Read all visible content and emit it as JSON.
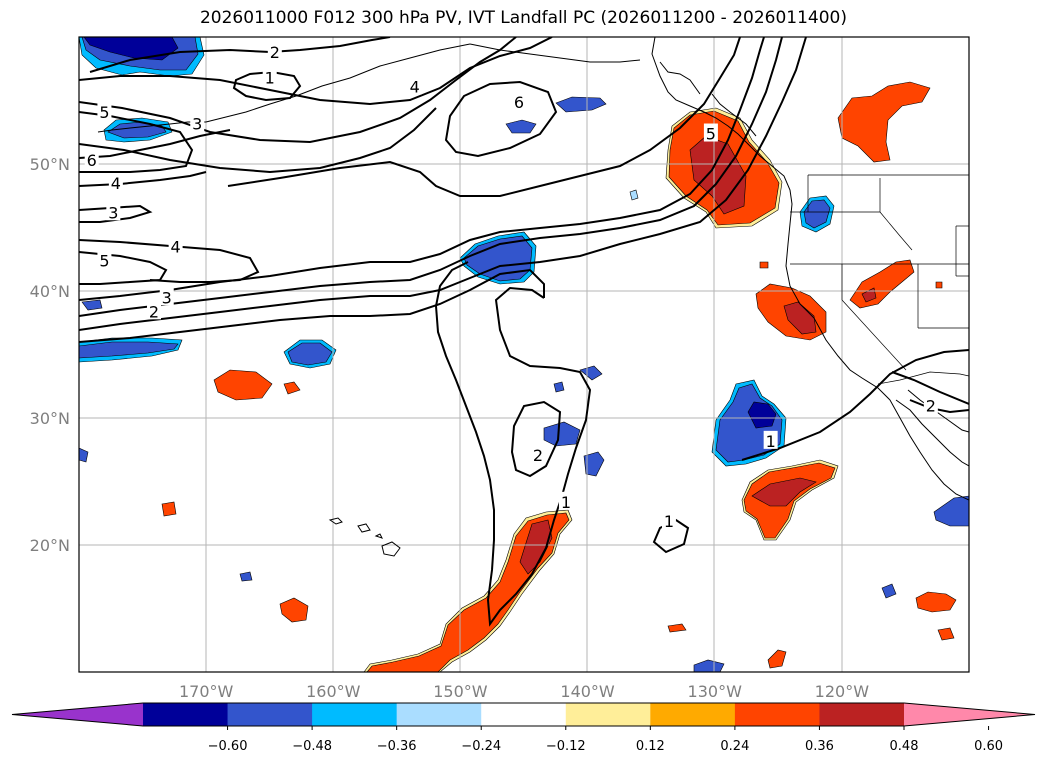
{
  "title": "2026011000 F012 300 hPa PV, IVT Landfall PC (2026011200 - 2026011400)",
  "map": {
    "lon_range": [
      -180,
      -110
    ],
    "lat_range": [
      10,
      60
    ],
    "lon_ticks": [
      {
        "value": -170,
        "label": "170°W"
      },
      {
        "value": -160,
        "label": "160°W"
      },
      {
        "value": -150,
        "label": "150°W"
      },
      {
        "value": -140,
        "label": "140°W"
      },
      {
        "value": -130,
        "label": "130°W"
      },
      {
        "value": -120,
        "label": "120°W"
      }
    ],
    "lat_ticks": [
      {
        "value": 20,
        "label": "20°N"
      },
      {
        "value": 30,
        "label": "30°N"
      },
      {
        "value": 40,
        "label": "40°N"
      },
      {
        "value": 50,
        "label": "50°N"
      }
    ],
    "gridlines": true,
    "contour_labels": [
      {
        "lon": -164.6,
        "lat": 58.8,
        "text": "2"
      },
      {
        "lon": -165.0,
        "lat": 56.8,
        "text": "1"
      },
      {
        "lon": -153.6,
        "lat": 56.1,
        "text": "4"
      },
      {
        "lon": -145.4,
        "lat": 54.9,
        "text": "6"
      },
      {
        "lon": -178.0,
        "lat": 54.1,
        "text": "5"
      },
      {
        "lon": -170.7,
        "lat": 53.2,
        "text": "3"
      },
      {
        "lon": -179.0,
        "lat": 50.3,
        "text": "6"
      },
      {
        "lon": -177.1,
        "lat": 48.5,
        "text": "4"
      },
      {
        "lon": -177.3,
        "lat": 46.2,
        "text": "3"
      },
      {
        "lon": -172.4,
        "lat": 43.5,
        "text": "4"
      },
      {
        "lon": -178.0,
        "lat": 42.4,
        "text": "5"
      },
      {
        "lon": -173.1,
        "lat": 39.5,
        "text": "3"
      },
      {
        "lon": -174.1,
        "lat": 38.4,
        "text": "2"
      },
      {
        "lon": -130.3,
        "lat": 52.4,
        "text": "5"
      },
      {
        "lon": -143.9,
        "lat": 27.1,
        "text": "2"
      },
      {
        "lon": -141.7,
        "lat": 23.4,
        "text": "1"
      },
      {
        "lon": -125.6,
        "lat": 28.2,
        "text": "1"
      },
      {
        "lon": -133.6,
        "lat": 21.9,
        "text": "1"
      },
      {
        "lon": -113.0,
        "lat": 31.0,
        "text": "2"
      }
    ]
  },
  "colorbar": {
    "colors": [
      "#9933cc",
      "#000099",
      "#3355cc",
      "#00bbff",
      "#aaddff",
      "#ffffff",
      "#ffee99",
      "#ffaa00",
      "#ff4400",
      "#bb2222",
      "#ff88aa"
    ],
    "tick_labels": [
      "−0.60",
      "−0.48",
      "−0.36",
      "−0.24",
      "−0.12",
      "0.12",
      "0.24",
      "0.36",
      "0.48",
      "0.60"
    ]
  }
}
